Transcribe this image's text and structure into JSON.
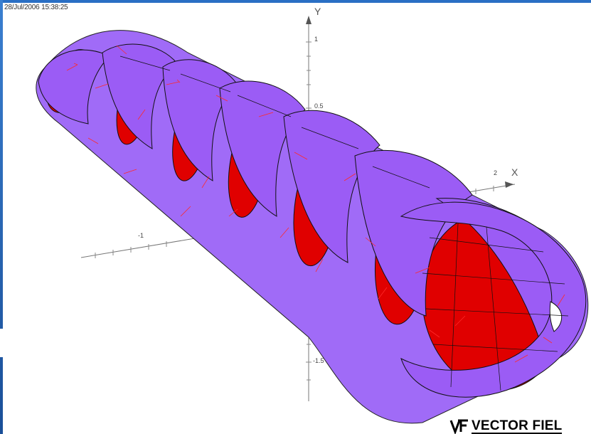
{
  "timestamp": "28/Jul/2006 15:38:25",
  "axes": {
    "y_label": "Y",
    "x_label": "X",
    "ticks": {
      "y_top": "1",
      "y_mid": "0.5",
      "y_bottom": "-1.5",
      "x_pos": "2",
      "x_neg": "-1"
    }
  },
  "brand": {
    "text": "VECTOR FIEL",
    "mark": "VF"
  },
  "colors": {
    "frame": "#1f5fa8",
    "surface_purple": "#9b5cf5",
    "surface_red": "#e00000",
    "vector_lines": "#ff3030",
    "axis": "#666666"
  },
  "icons": {
    "brand_logo": "vf-logo-icon"
  }
}
